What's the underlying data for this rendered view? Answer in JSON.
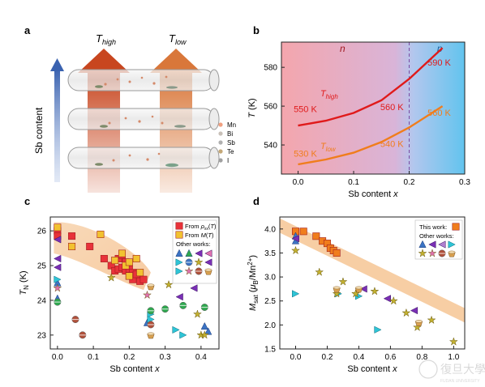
{
  "panels": {
    "a": {
      "label": "a",
      "arrow_left_label": "T_high",
      "arrow_right_label": "T_low",
      "vertical_axis_label": "Sb content",
      "legend_items": [
        "Mn",
        "Bi",
        "Sb",
        "Te",
        "I"
      ],
      "colors": {
        "arrow_high": "#c8461f",
        "arrow_low": "#d9773a",
        "axis_arrow": "#4a6fb8"
      }
    },
    "b": {
      "label": "b"
    },
    "c": {
      "label": "c"
    },
    "d": {
      "label": "d"
    }
  },
  "watermark": {
    "text": "復旦大學",
    "subtext": "FUDAN UNIVERSITY"
  },
  "chart_data": [
    {
      "panel": "b",
      "type": "line",
      "xlabel": "Sb content x",
      "ylabel": "T (K)",
      "xlim": [
        -0.03,
        0.3
      ],
      "ylim": [
        525,
        593
      ],
      "xticks": [
        0.0,
        0.1,
        0.2,
        0.3
      ],
      "yticks": [
        540,
        560,
        580
      ],
      "background_regions": [
        {
          "label": "n",
          "x_range": [
            -0.03,
            0.2
          ],
          "color": "#f4a6ad"
        },
        {
          "label": "p",
          "x_range": [
            0.2,
            0.3
          ],
          "color": "#7fd0ef"
        }
      ],
      "divider_x": 0.2,
      "series": [
        {
          "name": "T_high",
          "color": "#e01a1a",
          "x": [
            0.0,
            0.05,
            0.1,
            0.15,
            0.2,
            0.26
          ],
          "y": [
            550,
            552.5,
            556.5,
            563,
            574,
            590
          ]
        },
        {
          "name": "T_low",
          "color": "#f07d1c",
          "x": [
            0.0,
            0.05,
            0.1,
            0.15,
            0.2,
            0.26
          ],
          "y": [
            530,
            532.5,
            536,
            541.5,
            549,
            560
          ]
        }
      ],
      "annotations": [
        {
          "text": "550 K",
          "color": "#e01a1a"
        },
        {
          "text": "560 K",
          "color": "#e01a1a"
        },
        {
          "text": "590 K",
          "color": "#e01a1a"
        },
        {
          "text": "530 K",
          "color": "#f07d1c"
        },
        {
          "text": "540 K",
          "color": "#f07d1c"
        },
        {
          "text": "560 K",
          "color": "#f07d1c"
        }
      ]
    },
    {
      "panel": "c",
      "type": "scatter",
      "xlabel": "Sb content x",
      "ylabel": "T_N (K)",
      "xlim": [
        -0.02,
        0.45
      ],
      "ylim": [
        22.6,
        26.4
      ],
      "xticks": [
        0.0,
        0.1,
        0.2,
        0.3,
        0.4
      ],
      "yticks": [
        23,
        24,
        25,
        26
      ],
      "legend": {
        "this_work": [
          "From ρxx(T)",
          "From M(T)"
        ],
        "other_works_title": "Other works:"
      },
      "series": [
        {
          "name": "From ρxx(T)",
          "color": "#e8323a",
          "marker": "square",
          "x": [
            0.0,
            0.0,
            0.04,
            0.09,
            0.13,
            0.15,
            0.16,
            0.17,
            0.17,
            0.18,
            0.18,
            0.19,
            0.19,
            0.2,
            0.2,
            0.21,
            0.21,
            0.22,
            0.23,
            0.24
          ],
          "y": [
            26.0,
            25.85,
            25.85,
            25.55,
            25.2,
            25.0,
            24.85,
            25.2,
            24.9,
            25.3,
            24.95,
            25.1,
            24.85,
            24.9,
            24.7,
            24.8,
            24.6,
            24.75,
            24.55,
            24.6
          ]
        },
        {
          "name": "From M(T)",
          "color": "#f2c230",
          "marker": "square",
          "x": [
            0.0,
            0.04,
            0.12,
            0.16,
            0.18,
            0.19,
            0.2,
            0.2,
            0.22,
            0.23
          ],
          "y": [
            26.1,
            25.55,
            25.9,
            25.15,
            25.35,
            25.0,
            25.1,
            24.7,
            25.2,
            24.8
          ]
        },
        {
          "name": "Other works A",
          "color": "#3b73c4",
          "marker": "triangle-up",
          "x": [
            0.0,
            0.0,
            0.25,
            0.41,
            0.42
          ],
          "y": [
            24.05,
            24.5,
            23.35,
            23.25,
            23.1
          ]
        },
        {
          "name": "Other works B",
          "color": "#7a2fb5",
          "marker": "triangle-left",
          "x": [
            0.0,
            0.0,
            0.0,
            0.34,
            0.38
          ],
          "y": [
            25.75,
            25.2,
            24.95,
            24.1,
            24.35
          ]
        },
        {
          "name": "Other works C",
          "color": "#2ec4d6",
          "marker": "triangle-right",
          "x": [
            0.0,
            0.26,
            0.26,
            0.33,
            0.35
          ],
          "y": [
            24.6,
            23.6,
            23.45,
            23.15,
            23.0
          ]
        },
        {
          "name": "Other works D",
          "color": "#2fa84f",
          "marker": "circle-half",
          "x": [
            0.0,
            0.26,
            0.3,
            0.35,
            0.41
          ],
          "y": [
            23.95,
            23.7,
            23.75,
            23.85,
            23.8
          ]
        },
        {
          "name": "Other works E",
          "color": "#c2b030",
          "marker": "star",
          "x": [
            0.15,
            0.31,
            0.39,
            0.4,
            0.41
          ],
          "y": [
            24.65,
            24.45,
            23.6,
            23.0,
            23.0
          ]
        },
        {
          "name": "Other works F",
          "color": "#e070b0",
          "marker": "star",
          "x": [
            0.0,
            0.25
          ],
          "y": [
            24.35,
            24.15
          ]
        },
        {
          "name": "Other works G",
          "color": "#b0503a",
          "marker": "circle-half",
          "x": [
            0.05,
            0.07,
            0.26
          ],
          "y": [
            23.45,
            23.0,
            23.3
          ]
        },
        {
          "name": "Other works H",
          "color": "#d8a050",
          "marker": "bowl",
          "x": [
            0.26,
            0.26
          ],
          "y": [
            24.4,
            23.0
          ]
        }
      ]
    },
    {
      "panel": "d",
      "type": "scatter",
      "xlabel": "Sb content x",
      "ylabel": "M_sat (μB/Mn2+)",
      "xlim": [
        -0.1,
        1.07
      ],
      "ylim": [
        1.5,
        4.25
      ],
      "xticks": [
        0.0,
        0.2,
        0.4,
        0.6,
        0.8,
        1.0
      ],
      "yticks": [
        1.5,
        2.0,
        2.5,
        3.0,
        3.5,
        4.0
      ],
      "legend": {
        "this_work": "This work:",
        "other_works_title": "Other works:"
      },
      "series": [
        {
          "name": "This work",
          "color": "#f07d1c",
          "marker": "square",
          "x": [
            0.0,
            0.05,
            0.13,
            0.17,
            0.2,
            0.22,
            0.24,
            0.26
          ],
          "y": [
            3.95,
            3.95,
            3.85,
            3.75,
            3.7,
            3.6,
            3.55,
            3.5
          ]
        },
        {
          "name": "Other works A",
          "color": "#3b73c4",
          "marker": "triangle-up",
          "x": [
            0.0,
            0.0
          ],
          "y": [
            3.85,
            3.75
          ]
        },
        {
          "name": "Other works B",
          "color": "#7a2fb5",
          "marker": "triangle-left",
          "x": [
            0.0,
            0.43,
            0.58,
            0.75
          ],
          "y": [
            3.8,
            2.75,
            2.55,
            2.3
          ]
        },
        {
          "name": "Other works C",
          "color": "#2ec4d6",
          "marker": "triangle-right",
          "x": [
            0.0,
            0.27,
            0.4,
            0.52
          ],
          "y": [
            2.65,
            2.65,
            2.6,
            1.9
          ]
        },
        {
          "name": "Other works E",
          "color": "#c2b030",
          "marker": "star",
          "x": [
            0.0,
            0.15,
            0.26,
            0.3,
            0.38,
            0.5,
            0.62,
            0.7,
            0.77,
            0.86,
            1.0
          ],
          "y": [
            3.55,
            3.1,
            2.65,
            2.9,
            2.65,
            2.7,
            2.5,
            2.25,
            1.95,
            2.1,
            1.65
          ]
        },
        {
          "name": "Other works H",
          "color": "#d8a050",
          "marker": "bowl",
          "x": [
            0.26,
            0.4,
            0.78
          ],
          "y": [
            2.75,
            2.75,
            2.05
          ]
        }
      ]
    }
  ]
}
